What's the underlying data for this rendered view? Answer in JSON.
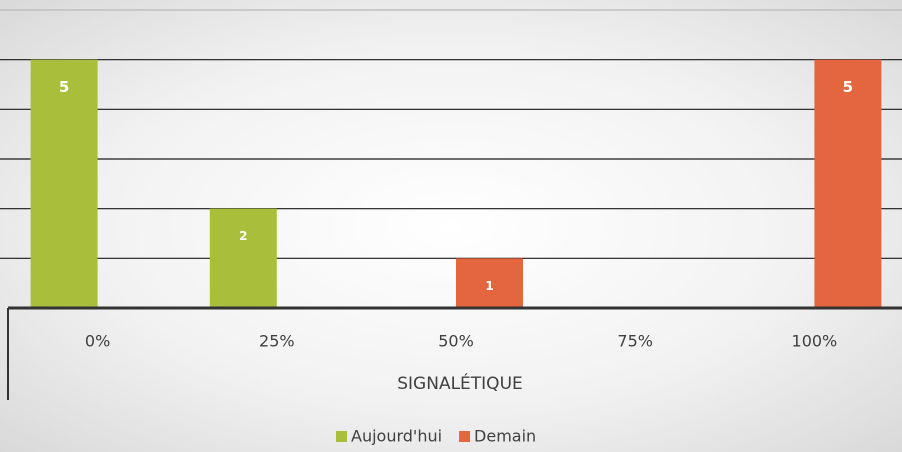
{
  "chart_data": {
    "type": "bar",
    "categories": [
      "0%",
      "25%",
      "50%",
      "75%",
      "100%"
    ],
    "series": [
      {
        "name": "Aujourd'hui",
        "color": "#a9bf3c",
        "values": [
          5,
          2,
          null,
          null,
          null
        ]
      },
      {
        "name": "Demain",
        "color": "#e4663f",
        "values": [
          null,
          null,
          1,
          null,
          5
        ]
      }
    ],
    "x_label": "SIGNALÉTIQUE",
    "ylim": [
      0,
      6
    ],
    "yticks": [
      0,
      1,
      2,
      3,
      4,
      5,
      6
    ],
    "grid": true,
    "legend": "bottom"
  }
}
